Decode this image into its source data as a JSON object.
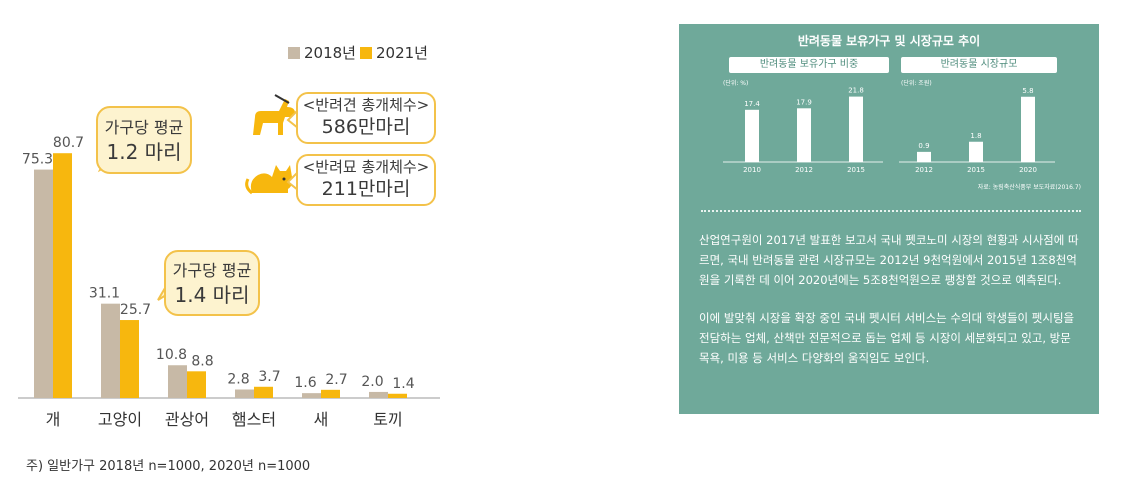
{
  "chart_data": [
    {
      "type": "bar",
      "categories": [
        "개",
        "고양이",
        "관상어",
        "햄스터",
        "새",
        "토끼"
      ],
      "series": [
        {
          "name": "2018년",
          "values": [
            75.3,
            31.1,
            10.8,
            2.8,
            1.6,
            2.0
          ],
          "color": "#c7b9a6"
        },
        {
          "name": "2021년",
          "values": [
            80.7,
            25.7,
            8.8,
            3.7,
            2.7,
            1.4
          ],
          "color": "#f7b70e"
        }
      ],
      "value_labels": [
        [
          "75.3",
          "31.1",
          "10.8",
          "2.8",
          "1.6",
          "2.0"
        ],
        [
          "80.7",
          "25.7",
          "8.8",
          "3.7",
          "2.7",
          "1.4"
        ]
      ],
      "ylim": [
        0,
        90
      ],
      "legend_position": "top-right",
      "grid": false
    },
    {
      "type": "bar",
      "title": "반려동물 보유가구 비중",
      "unit": "(단위: %)",
      "categories": [
        "2010",
        "2012",
        "2015"
      ],
      "values": [
        17.4,
        17.9,
        21.8
      ],
      "value_labels": [
        "17.4",
        "17.9",
        "21.8"
      ],
      "ylim": [
        0,
        24
      ]
    },
    {
      "type": "bar",
      "title": "반려동물 시장규모",
      "unit": "(단위: 조원)",
      "categories": [
        "2012",
        "2015",
        "2020"
      ],
      "values": [
        0.9,
        1.8,
        5.8
      ],
      "value_labels": [
        "0.9",
        "1.8",
        "5.8"
      ],
      "ylim": [
        0,
        6.4
      ]
    }
  ],
  "legend": {
    "y2018": "2018년",
    "y2021": "2021년"
  },
  "callouts": {
    "dog": {
      "line1": "가구당 평균",
      "line2": "1.2 마리"
    },
    "cat": {
      "line1": "가구당 평균",
      "line2": "1.4 마리"
    }
  },
  "pets": {
    "dog": {
      "line1": "<반려견 총개체수>",
      "line2": "586만마리",
      "icon": "dog-icon"
    },
    "cat": {
      "line1": "<반려묘 총개체수>",
      "line2": "211만마리",
      "icon": "cat-icon"
    }
  },
  "note": "주) 일반가구 2018년 n=1000, 2020년 n=1000",
  "panel": {
    "title": "반려동물 보유가구 및 시장규모 추이",
    "source": "자료: 농림축산식품부 보도자료(2016.7)",
    "paragraph1": "산업연구원이 2017년 발표한 보고서 국내 펫코노미 시장의 현황과 시사점에 따르면, 국내 반려동물 관련 시장규모는 2012년 9천억원에서 2015년 1조8천억원을 기록한 데 이어 2020년에는 5조8천억원으로 팽창할 것으로 예측된다.",
    "paragraph2": "이에 발맞춰 시장을 확장 중인 국내 펫시터 서비스는 수의대 학생들이 펫시팅을 전담하는 업체, 산책만 전문적으로 돕는 업체 등 시장이 세분화되고 있고, 방문 목욕, 미용 등 서비스 다양화의 움직임도 보인다."
  },
  "colors": {
    "bar2018": "#c7b9a6",
    "bar2021": "#f7b70e",
    "panel_bg": "#6fa99a",
    "callout_border": "#f3c24a"
  }
}
